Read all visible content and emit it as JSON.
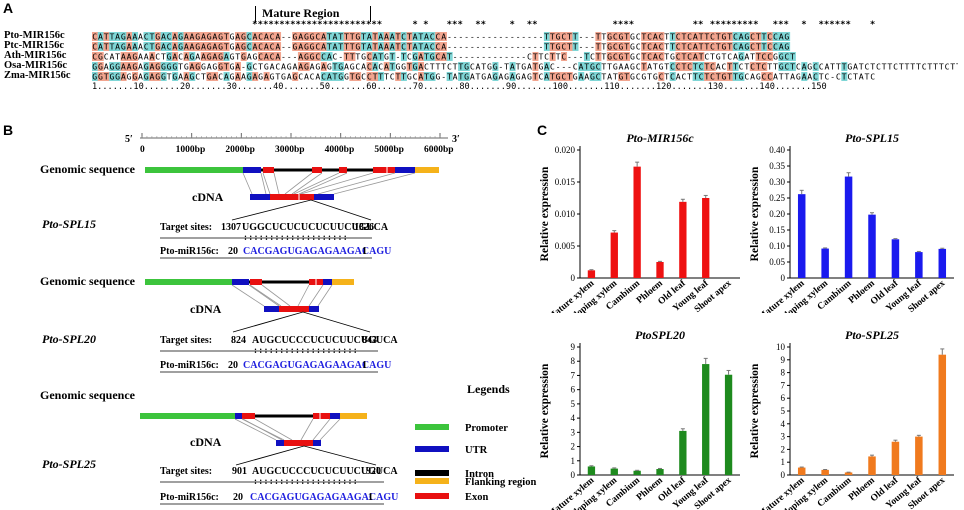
{
  "panels": {
    "a": "A",
    "b": "B",
    "c": "C"
  },
  "panel_a": {
    "mature_region_label": "Mature Region",
    "star_line": "************************    * *    ***  ** **   *  **          ****        ** ********* ***  *  ****** *  ",
    "star_groups": [
      {
        "text": "************************",
        "col": 28
      },
      {
        "text": "* *",
        "col": 56
      },
      {
        "text": "***",
        "col": 62
      },
      {
        "text": "**",
        "col": 67
      },
      {
        "text": "*",
        "col": 73
      },
      {
        "text": "**",
        "col": 76
      },
      {
        "text": "****",
        "col": 91
      },
      {
        "text": "**",
        "col": 105
      },
      {
        "text": "*********",
        "col": 108
      },
      {
        "text": "***",
        "col": 119
      },
      {
        "text": "*",
        "col": 124
      },
      {
        "text": "******",
        "col": 127
      },
      {
        "text": "*",
        "col": 136
      }
    ],
    "sequences": [
      {
        "name": "Pto-MIR156c",
        "text": "CATTAGAAACTGACAGAAGAGAGTGAGCACACA--GAGGCATATTTGTATAAATCTATACCA-----------------TTGCTT---TTGCGTGCTCACTTCTCATTCTGTCAGCTTCCAG"
      },
      {
        "name": "Ptc-MIR156c",
        "text": "CATTAGAAACTGACAGAAGAGAGTGAGCACACA--GAGGCATATTTGTATAAATCTATACCA-----------------TTGCTT---TTGCGTGCTCACTTCTCATTCTGTCAGCTTCCAG"
      },
      {
        "name": "Ath-MIR156c",
        "text": "CGCATAAGAAACTGACAGAAGAGAGTGAGCACA---AGGCCAC-TTTGCATGT-TCGATGCAT-------------CTTCTTC---TCTTGCGTGCTCACTGCTCATCTGTCAGATTCCGGCT"
      },
      {
        "name": "Osa-MIR156c",
        "text": "GGAGGAAGAGAGGGGTGAGGAGGTGA-GCTGACAGAAGAGAGTGAGCACACATGGTGACTTTCTTGCATGG-TATGATGAC---CATGCTTGAAGCTATGTCCTCTCTCACTTCTCTCTTGCTCAGCCATTTGATCTCTTCTTTTCTTTCTTC"
      },
      {
        "name": "Zma-MIR156c",
        "text": "GGTGGAGGAGAGGTGAAGCTGACAGAAGAGAGTGAGCACACATGGTGCCTTTCTTGCATGG-TATGATGAGAGAGAGTCATGCTGAAGCTATGTGCGTGCTCACTTCTCTGTTGCAGCCATTAGAACTC-CTCTATC"
      }
    ],
    "ruler": "1.......10.......20.......30.......40.......50.......60.......70.......80.......90.......100.......110.......120.......130.......140.......150"
  },
  "panel_b": {
    "axis": {
      "start_label": "5′",
      "end_label": "3′",
      "ticks": [
        "0",
        "1000bp",
        "2000bp",
        "3000bp",
        "4000bp",
        "5000bp",
        "6000bp"
      ]
    },
    "genes": [
      {
        "genomic_label": "Genomic sequence",
        "cdna_label": "cDNA",
        "gene": "Pto-SPL15",
        "target_label": "Target sites:",
        "target_start": "1307",
        "target_seq": "UGGCUCUCUCUCUUCUGUCA",
        "target_end": "1326",
        "dots": ": : : : : : : : : : : : : : : : : : : :",
        "mir_label": "Pto-miR156c:",
        "mir_start": "20",
        "mir_seq": "CACGAGUGAGAGAAGACAGU",
        "mir_end": "1"
      },
      {
        "genomic_label": "Genomic sequence",
        "cdna_label": "cDNA",
        "gene": "Pto-SPL20",
        "target_label": "Target sites:",
        "target_start": "824",
        "target_seq": "AUGCUCCCUCUCUUCUGUCA",
        "target_end": "843",
        "dots": ": : : : : : : : : : : : : : : : : : : :",
        "mir_label": "Pto-miR156c:",
        "mir_start": "20",
        "mir_seq": "CACGAGUGAGAGAAGACAGU",
        "mir_end": "1"
      },
      {
        "genomic_label": "Genomic sequence",
        "cdna_label": "cDNA",
        "gene": "Pto-SPL25",
        "target_label": "Target sites:",
        "target_start": "901",
        "target_seq": "AUGCUCCCUCUCUUCUGUCA",
        "target_end": "920",
        "dots": ": : : : : : : : : : : : : : : : : : : :",
        "mir_label": "Pto-miR156c:",
        "mir_start": "20",
        "mir_seq": "CACGAGUGAGAGAAGACAGU",
        "mir_end": "1"
      }
    ],
    "legend": {
      "title": "Legends",
      "items": [
        {
          "label": "Promoter",
          "color": "#3cc43c"
        },
        {
          "label": "UTR",
          "color": "#1010c0"
        },
        {
          "label": "Intron",
          "color": "#000000"
        },
        {
          "label": "Exon",
          "color": "#e81010"
        },
        {
          "label": "Flanking region",
          "color": "#f5b21a"
        }
      ]
    },
    "colors": {
      "promoter": "#3cc43c",
      "utr": "#1010c0",
      "intron": "#000000",
      "exon": "#e81010",
      "flank": "#f5b21a",
      "mirna_text": "#1f1fdf"
    }
  },
  "chart_data": [
    {
      "type": "bar",
      "title": "Pto-MIR156c",
      "ylabel": "Relative expression",
      "color": "#ee1111",
      "categories": [
        "Mature xylem",
        "Developing xylem",
        "Cambium",
        "Phloem",
        "Old leaf",
        "Young leaf",
        "Shoot apex"
      ],
      "values": [
        0.0012,
        0.0071,
        0.0174,
        0.0025,
        0.0119,
        0.0125,
        0.0
      ],
      "errors": [
        0.0001,
        0.0003,
        0.0007,
        0.0001,
        0.0004,
        0.0004,
        0.0
      ],
      "ylim": [
        0,
        0.02
      ],
      "ticks": [
        "0",
        "0.005",
        "0.010",
        "0.015",
        "0.020"
      ],
      "tick_values": [
        0,
        0.005,
        0.01,
        0.015,
        0.02
      ]
    },
    {
      "type": "bar",
      "title": "Pto-SPL15",
      "ylabel": "Relative expression",
      "color": "#1a1aee",
      "categories": [
        "Mature xylem",
        "Developing xylem",
        "Cambium",
        "Phloem",
        "Old leaf",
        "Young leaf",
        "Shoot apex"
      ],
      "values": [
        0.262,
        0.092,
        0.317,
        0.198,
        0.121,
        0.081,
        0.091
      ],
      "errors": [
        0.012,
        0.002,
        0.012,
        0.006,
        0.002,
        0.002,
        0.002
      ],
      "ylim": [
        0,
        0.4
      ],
      "ticks": [
        "0",
        "0.05",
        "0.10",
        "0.15",
        "0.20",
        "0.25",
        "0.30",
        "0.35",
        "0.40"
      ],
      "tick_values": [
        0,
        0.05,
        0.1,
        0.15,
        0.2,
        0.25,
        0.3,
        0.35,
        0.4
      ]
    },
    {
      "type": "bar",
      "title": "PtoSPL20",
      "ylabel": "Relative expression",
      "color": "#1e8a1e",
      "categories": [
        "Mature xylem",
        "Developing xylem",
        "Cambium",
        "Phloem",
        "Old leaf",
        "Young leaf",
        "Shoot apex"
      ],
      "values": [
        0.6,
        0.45,
        0.3,
        0.42,
        3.1,
        7.8,
        7.05
      ],
      "errors": [
        0.05,
        0.05,
        0.03,
        0.04,
        0.15,
        0.4,
        0.3
      ],
      "ylim": [
        0,
        9
      ],
      "ticks": [
        "0",
        "1",
        "2",
        "3",
        "4",
        "5",
        "6",
        "7",
        "8",
        "9"
      ],
      "tick_values": [
        0,
        1,
        2,
        3,
        4,
        5,
        6,
        7,
        8,
        9
      ]
    },
    {
      "type": "bar",
      "title": "Pto-SPL25",
      "ylabel": "Relative expression",
      "color": "#f07a1e",
      "categories": [
        "Mature xylem",
        "Developing xylem",
        "Cambium",
        "Phloem",
        "Old leaf",
        "Young leaf",
        "Shoot apex"
      ],
      "values": [
        0.58,
        0.4,
        0.2,
        1.45,
        2.6,
        3.0,
        9.4
      ],
      "errors": [
        0.04,
        0.03,
        0.02,
        0.1,
        0.12,
        0.1,
        0.45
      ],
      "ylim": [
        0,
        10
      ],
      "ticks": [
        "0",
        "1",
        "2",
        "3",
        "4",
        "5",
        "6",
        "7",
        "8",
        "9",
        "10"
      ],
      "tick_values": [
        0,
        1,
        2,
        3,
        4,
        5,
        6,
        7,
        8,
        9,
        10
      ]
    }
  ]
}
